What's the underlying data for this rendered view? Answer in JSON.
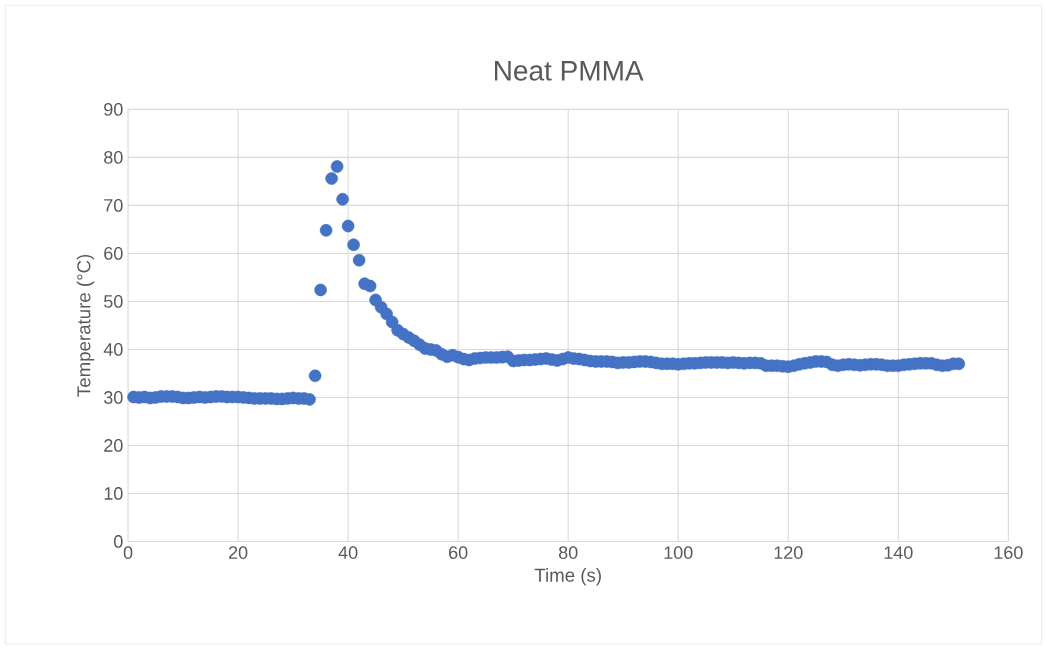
{
  "chart_data": {
    "type": "scatter",
    "title": "Neat PMMA",
    "xlabel": "Time (s)",
    "ylabel": "Temperature (°C)",
    "color": "#4472c4",
    "grid": true,
    "xlim": [
      0,
      160
    ],
    "ylim": [
      0,
      90
    ],
    "xticks": [
      0,
      20,
      40,
      60,
      80,
      100,
      120,
      140,
      160
    ],
    "yticks": [
      0,
      10,
      20,
      30,
      40,
      50,
      60,
      70,
      80,
      90
    ],
    "x": [
      1,
      2,
      3,
      4,
      5,
      6,
      7,
      8,
      9,
      10,
      11,
      12,
      13,
      14,
      15,
      16,
      17,
      18,
      19,
      20,
      21,
      22,
      23,
      24,
      25,
      26,
      27,
      28,
      29,
      30,
      31,
      32,
      33,
      34,
      35,
      36,
      37,
      38,
      39,
      40,
      41,
      42,
      43,
      44,
      45,
      46,
      47,
      48,
      49,
      50,
      51,
      52,
      53,
      54,
      55,
      56,
      57,
      58,
      59,
      60,
      61,
      62,
      63,
      64,
      65,
      66,
      67,
      68,
      69,
      70,
      71,
      72,
      73,
      74,
      75,
      76,
      77,
      78,
      79,
      80,
      81,
      82,
      83,
      84,
      85,
      86,
      87,
      88,
      89,
      90,
      91,
      92,
      93,
      94,
      95,
      96,
      97,
      98,
      99,
      100,
      101,
      102,
      103,
      104,
      105,
      106,
      107,
      108,
      109,
      110,
      111,
      112,
      113,
      114,
      115,
      116,
      117,
      118,
      119,
      120,
      121,
      122,
      123,
      124,
      125,
      126,
      127,
      128,
      129,
      130,
      131,
      132,
      133,
      134,
      135,
      136,
      137,
      138,
      139,
      140,
      141,
      142,
      143,
      144,
      145,
      146,
      147,
      148,
      149,
      150,
      151
    ],
    "values": [
      30.1,
      30.0,
      30.1,
      29.9,
      30.0,
      30.2,
      30.2,
      30.2,
      30.1,
      29.9,
      29.9,
      30.0,
      30.1,
      30.0,
      30.1,
      30.2,
      30.2,
      30.1,
      30.1,
      30.1,
      30.0,
      29.9,
      29.8,
      29.8,
      29.8,
      29.8,
      29.7,
      29.7,
      29.8,
      29.9,
      29.8,
      29.8,
      29.6,
      34.5,
      52.4,
      64.8,
      75.6,
      78.1,
      71.3,
      65.7,
      61.8,
      58.6,
      53.7,
      53.2,
      50.3,
      48.8,
      47.4,
      45.7,
      44.0,
      43.2,
      42.5,
      41.8,
      41.0,
      40.2,
      40.0,
      39.8,
      39.0,
      38.5,
      38.8,
      38.4,
      38.0,
      37.8,
      38.1,
      38.2,
      38.3,
      38.3,
      38.3,
      38.4,
      38.5,
      37.6,
      37.7,
      37.8,
      37.8,
      37.9,
      38.0,
      38.1,
      37.9,
      37.7,
      38.0,
      38.3,
      38.1,
      38.0,
      37.8,
      37.6,
      37.5,
      37.5,
      37.5,
      37.4,
      37.2,
      37.3,
      37.3,
      37.4,
      37.5,
      37.5,
      37.4,
      37.2,
      37.0,
      37.0,
      37.0,
      36.9,
      37.0,
      37.1,
      37.1,
      37.2,
      37.3,
      37.3,
      37.3,
      37.3,
      37.2,
      37.3,
      37.2,
      37.1,
      37.2,
      37.2,
      37.1,
      36.6,
      36.6,
      36.6,
      36.5,
      36.4,
      36.6,
      36.9,
      37.1,
      37.3,
      37.5,
      37.5,
      37.4,
      36.8,
      36.6,
      36.8,
      36.9,
      36.8,
      36.7,
      36.8,
      36.9,
      36.9,
      36.8,
      36.6,
      36.6,
      36.6,
      36.8,
      36.9,
      37.0,
      37.1,
      37.1,
      37.1,
      36.8,
      36.6,
      36.7,
      37.0,
      37.0
    ]
  }
}
